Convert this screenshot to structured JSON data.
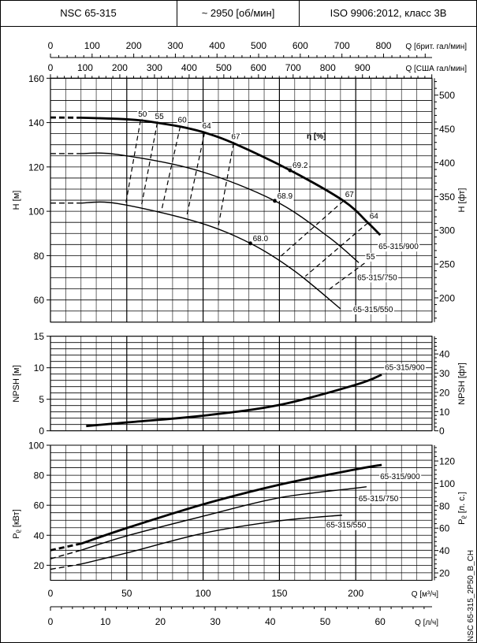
{
  "header": {
    "model": "NSC 65-315",
    "speed": "~ 2950 [об/мин]",
    "standard": "ISO 9906:2012, класс 3B"
  },
  "drawing_code": "NSC 65-315_2P50_B_CH",
  "chart_data": {
    "type": "line",
    "x_axes": {
      "m3h": {
        "label": "Q [м³/ч]",
        "ticks": [
          0,
          50,
          100,
          150,
          200
        ],
        "range": [
          0,
          250
        ]
      },
      "ls": {
        "label": "Q [л/ч]",
        "ticks": [
          0,
          10,
          20,
          30,
          40,
          50,
          60
        ],
        "factor": 0.2778
      },
      "uk_gpm": {
        "label": "Q [брит. гал/мин]",
        "ticks": [
          0,
          100,
          200,
          300,
          400,
          500,
          600,
          700,
          800
        ],
        "factor": 3.666
      },
      "us_gpm": {
        "label": "Q [США гал/мин]",
        "ticks": [
          0,
          100,
          200,
          300,
          400,
          500,
          600,
          700,
          800,
          900
        ],
        "factor": 4.403
      }
    },
    "head": {
      "ylabel": "H [м]",
      "ylabel_right": "H [фт]",
      "ylim": [
        50,
        160
      ],
      "yticks": [
        60,
        80,
        100,
        120,
        140,
        160
      ],
      "yticks_right": [
        200,
        250,
        300,
        350,
        400,
        450,
        500
      ],
      "right_factor": 3.281,
      "eff_label": "η [%]",
      "series": [
        {
          "name": "65-315/900",
          "dashed_until": 20,
          "bold": true,
          "points": [
            [
              0,
              142.3
            ],
            [
              20,
              142.2
            ],
            [
              44,
              141.7
            ],
            [
              59,
              141
            ],
            [
              70,
              139.9
            ],
            [
              85,
              138.2
            ],
            [
              101,
              135.5
            ],
            [
              120,
              130.7
            ],
            [
              157,
              118.5
            ],
            [
              192,
              104.7
            ],
            [
              208,
              94.8
            ],
            [
              216,
              89.3
            ]
          ],
          "bep": {
            "q": 157,
            "h": 118.5,
            "eta": "69.2"
          }
        },
        {
          "name": "65-315/750",
          "dashed_until": 20,
          "bold": false,
          "points": [
            [
              0,
              126
            ],
            [
              20,
              126
            ],
            [
              44,
              125.6
            ],
            [
              96,
              118.5
            ],
            [
              147,
              104.7
            ],
            [
              182,
              88.5
            ],
            [
              202,
              76.8
            ]
          ],
          "bep": {
            "q": 147,
            "h": 104.7,
            "eta": "68.9"
          }
        },
        {
          "name": "65-315/550",
          "dashed_until": 20,
          "bold": false,
          "points": [
            [
              0,
              103.7
            ],
            [
              20,
              103.7
            ],
            [
              44,
              103.5
            ],
            [
              96,
              95.2
            ],
            [
              131,
              85.5
            ],
            [
              160,
              73
            ],
            [
              190,
              56
            ]
          ],
          "bep": {
            "q": 131,
            "h": 85.5,
            "eta": "68.0"
          }
        }
      ],
      "efficiency_lines": [
        {
          "eta": "50",
          "side": "left",
          "points": [
            [
              59,
              141
            ],
            [
              49.5,
              104
            ]
          ]
        },
        {
          "eta": "55",
          "side": "left",
          "points": [
            [
              70,
              139.9
            ],
            [
              59.8,
              103.2
            ]
          ]
        },
        {
          "eta": "60",
          "side": "left",
          "points": [
            [
              85,
              138.2
            ],
            [
              73,
              101.1
            ]
          ]
        },
        {
          "eta": "64",
          "side": "left",
          "points": [
            [
              101,
              135.5
            ],
            [
              89.3,
              97.9
            ]
          ]
        },
        {
          "eta": "67",
          "side": "left",
          "points": [
            [
              120,
              130.7
            ],
            [
              110,
              93.4
            ]
          ]
        },
        {
          "eta": "67",
          "side": "right",
          "points": [
            [
              192,
              104.7
            ],
            [
              151,
              79.8
            ]
          ]
        },
        {
          "eta": "64",
          "side": "right",
          "points": [
            [
              208,
              94.8
            ],
            [
              167,
              70.7
            ]
          ]
        },
        {
          "eta": "55",
          "side": "right",
          "points": [
            [
              205.8,
              76.6
            ],
            [
              181.8,
              64.4
            ]
          ]
        }
      ]
    },
    "npsh": {
      "ylabel": "NPSH [м]",
      "ylabel_right": "NPSH [фт]",
      "ylim": [
        0,
        15
      ],
      "yticks": [
        0,
        5,
        10,
        15
      ],
      "yticks_right": [
        0,
        10,
        20,
        30,
        40
      ],
      "right_factor": 3.281,
      "series": [
        {
          "name": "65-315/900",
          "points": [
            [
              23.4,
              0.75
            ],
            [
              50,
              1.33
            ],
            [
              100,
              2.4
            ],
            [
              150,
              4.1
            ],
            [
              200,
              7.3
            ],
            [
              217,
              8.9
            ]
          ]
        }
      ]
    },
    "power": {
      "ylabel": "P",
      "ylabel_sub": "P",
      "ylabel_unit": "[кВт]",
      "ylabel_right_unit": "[л. с.]",
      "ylim": [
        10,
        100
      ],
      "yticks": [
        20,
        40,
        60,
        80,
        100
      ],
      "yticks_right": [
        20,
        40,
        60,
        80,
        100,
        120
      ],
      "right_factor": 1.341,
      "series": [
        {
          "name": "65-315/900",
          "bold": true,
          "dashed_until": 20,
          "points": [
            [
              0,
              30
            ],
            [
              20,
              34.4
            ],
            [
              50,
              44.8
            ],
            [
              100,
              60.6
            ],
            [
              150,
              73.7
            ],
            [
              200,
              83.9
            ],
            [
              217,
              86.9
            ]
          ]
        },
        {
          "name": "65-315/750",
          "bold": false,
          "dashed_until": 20,
          "points": [
            [
              0,
              24.3
            ],
            [
              20,
              30
            ],
            [
              50,
              39.6
            ],
            [
              100,
              52.7
            ],
            [
              150,
              65
            ],
            [
              200,
              71.4
            ],
            [
              207,
              72.3
            ]
          ]
        },
        {
          "name": "65-315/550",
          "bold": false,
          "dashed_until": 20,
          "points": [
            [
              0,
              17.3
            ],
            [
              20,
              20.8
            ],
            [
              50,
              28.2
            ],
            [
              100,
              41.3
            ],
            [
              150,
              49.6
            ],
            [
              191,
              53.4
            ]
          ]
        }
      ]
    }
  }
}
